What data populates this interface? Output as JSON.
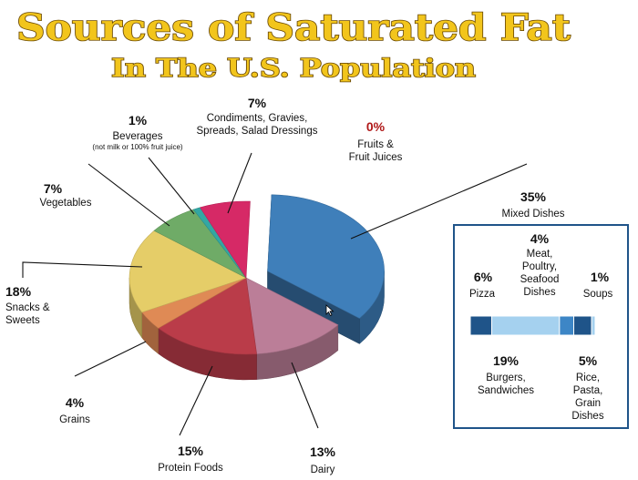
{
  "title": "Sources of Saturated Fat",
  "subtitle": "In The U.S. Population",
  "colors": {
    "title_fill": "#f2c51c",
    "title_outline": "#6b4a06",
    "zero_label": "#b01818",
    "breakdown_dark": "#1f5489",
    "breakdown_light": "#a5d1ef"
  },
  "chart_data": [
    {
      "type": "pie",
      "title": "Sources of Saturated Fat",
      "subtitle": "In The U.S. Population",
      "unit": "%",
      "slices": [
        {
          "key": "mixed",
          "label": "Mixed Dishes",
          "pct_label": "35%",
          "value": 35,
          "color": "#3f7fba",
          "exploded": true
        },
        {
          "key": "dairy",
          "label": "Dairy",
          "pct_label": "13%",
          "value": 13,
          "color": "#bb7e98"
        },
        {
          "key": "protein",
          "label": "Protein Foods",
          "pct_label": "15%",
          "value": 15,
          "color": "#ba3c49"
        },
        {
          "key": "grains",
          "label": "Grains",
          "pct_label": "4%",
          "value": 4,
          "color": "#df8a55"
        },
        {
          "key": "snacks",
          "label": "Snacks & Sweets",
          "pct_label": "18%",
          "value": 18,
          "color": "#e5cd68"
        },
        {
          "key": "vegetables",
          "label": "Vegetables",
          "pct_label": "7%",
          "value": 7,
          "color": "#6fab67"
        },
        {
          "key": "beverages",
          "label": "Beverages",
          "note": "(not milk or 100% fruit juice)",
          "pct_label": "1%",
          "value": 1,
          "color": "#33a7a3"
        },
        {
          "key": "condiments",
          "label": "Condiments, Gravies, Spreads, Salad Dressings",
          "pct_label": "7%",
          "value": 7,
          "color": "#d62966"
        },
        {
          "key": "fruits",
          "label": "Fruits & Fruit Juices",
          "pct_label": "0%",
          "value": 0,
          "color": "#b01818"
        }
      ]
    },
    {
      "type": "bar",
      "orientation": "horizontal-stacked",
      "title": "Mixed Dishes",
      "segments": [
        {
          "key": "pizza",
          "label": "Pizza",
          "pct_label": "6%",
          "value": 6,
          "color": "#1f5489"
        },
        {
          "key": "burgers",
          "label": "Burgers, Sandwiches",
          "pct_label": "19%",
          "value": 19,
          "color": "#a5d1ef"
        },
        {
          "key": "meat",
          "label": "Meat, Poultry, Seafood Dishes",
          "pct_label": "4%",
          "value": 4,
          "color": "#3d86c6"
        },
        {
          "key": "rice",
          "label": "Rice, Pasta, Grain Dishes",
          "pct_label": "5%",
          "value": 5,
          "color": "#1f5489"
        },
        {
          "key": "soups",
          "label": "Soups",
          "pct_label": "1%",
          "value": 1,
          "color": "#a5d1ef"
        }
      ]
    }
  ]
}
